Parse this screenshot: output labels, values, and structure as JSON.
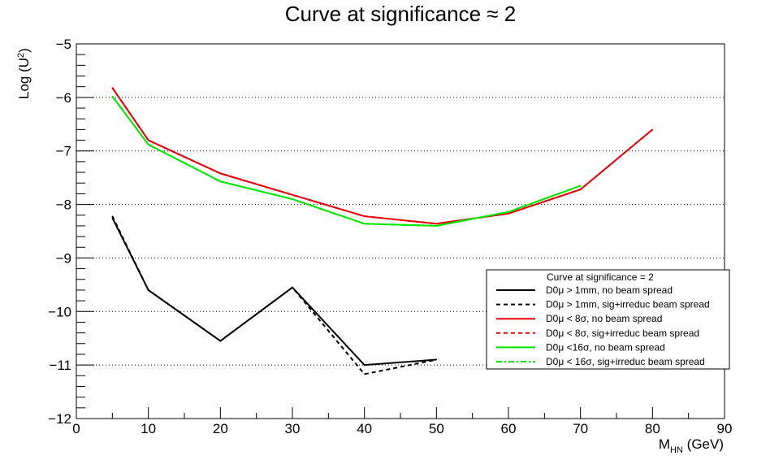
{
  "chart_data": {
    "type": "line",
    "title": "Curve at significance ≈ 2",
    "xlabel": {
      "main": "M",
      "sub": "HN",
      "rest": " (GeV)"
    },
    "ylabel": {
      "main": "Log (U",
      "sup": "2",
      "rest": ")"
    },
    "xlim": [
      0,
      90
    ],
    "ylim": [
      -12,
      -5
    ],
    "x_ticks": [
      "0",
      "10",
      "20",
      "30",
      "40",
      "50",
      "60",
      "70",
      "80",
      "90"
    ],
    "y_ticks": [
      "−12",
      "−11",
      "−10",
      "−9",
      "−8",
      "−7",
      "−6",
      "−5"
    ],
    "grid": "horizontal dotted",
    "legend_position": "right-bottom",
    "legend_title": "Curve at significance = 2",
    "series": [
      {
        "name": "D0μ > 1mm, no beam spread",
        "color": "#000000",
        "dash": "solid",
        "x": [
          5,
          10,
          20,
          30,
          40,
          50
        ],
        "y": [
          -8.25,
          -9.6,
          -10.55,
          -9.55,
          -11.0,
          -10.9
        ]
      },
      {
        "name": "D0μ > 1mm, sig+irreduc beam spread",
        "color": "#000000",
        "dash": "dashed",
        "x": [
          5,
          10,
          20,
          30,
          40,
          50
        ],
        "y": [
          -8.22,
          -9.6,
          -10.55,
          -9.55,
          -11.17,
          -10.9
        ]
      },
      {
        "name": "D0μ < 8σ, no beam spread",
        "color": "#e8000b",
        "dash": "solid",
        "x": [
          5,
          10,
          20,
          30,
          40,
          50,
          60,
          70,
          80
        ],
        "y": [
          -5.82,
          -6.8,
          -7.42,
          -7.82,
          -8.22,
          -8.36,
          -8.17,
          -7.72,
          -6.6
        ]
      },
      {
        "name": "D0μ < 8σ, sig+irreduc beam spread",
        "color": "#e8000b",
        "dash": "dashed",
        "x": [
          5,
          10,
          20,
          30,
          40,
          50,
          60,
          70,
          80
        ],
        "y": [
          -5.82,
          -6.8,
          -7.42,
          -7.82,
          -8.22,
          -8.36,
          -8.17,
          -7.72,
          -6.6
        ]
      },
      {
        "name": "D0μ <16σ, no beam spread",
        "color": "#00e800",
        "dash": "solid",
        "x": [
          5,
          10,
          20,
          30,
          40,
          50,
          60,
          70
        ],
        "y": [
          -5.98,
          -6.88,
          -7.57,
          -7.9,
          -8.36,
          -8.4,
          -8.14,
          -7.65
        ]
      },
      {
        "name": "D0μ < 16σ, sig+irreduc beam spread",
        "color": "#00e800",
        "dash": "dashdot",
        "x": [
          5,
          10,
          20,
          30,
          40,
          50,
          60,
          70
        ],
        "y": [
          -5.98,
          -6.88,
          -7.57,
          -7.9,
          -8.36,
          -8.4,
          -8.14,
          -7.65
        ]
      }
    ]
  }
}
